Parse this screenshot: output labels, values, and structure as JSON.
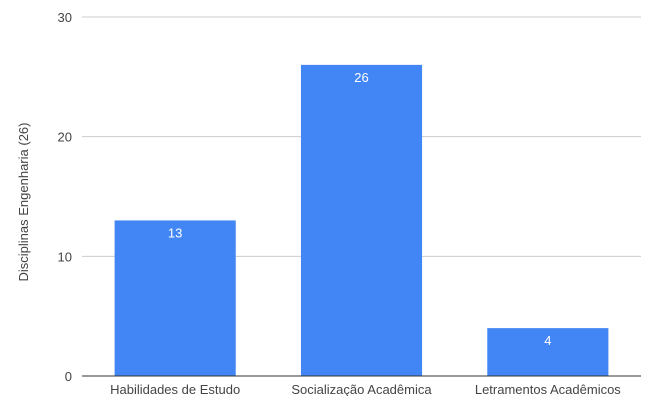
{
  "chart_data": {
    "type": "bar",
    "title": "",
    "xlabel": "",
    "ylabel": "Disciplinas Engenharia (26)",
    "categories": [
      "Habilidades de Estudo",
      "Socialização Acadêmica",
      "Letramentos Acadêmicos"
    ],
    "values": [
      13,
      26,
      4
    ],
    "data_labels": [
      "13",
      "26",
      "4"
    ],
    "ylim": [
      0,
      30
    ],
    "yticks": [
      0,
      10,
      20,
      30
    ],
    "grid": true,
    "legend": "none",
    "colors": {
      "bar": "#4285f4",
      "grid": "#cccccc",
      "axis": "#333333",
      "tick_text": "#444444",
      "data_label": "#ffffff"
    }
  }
}
